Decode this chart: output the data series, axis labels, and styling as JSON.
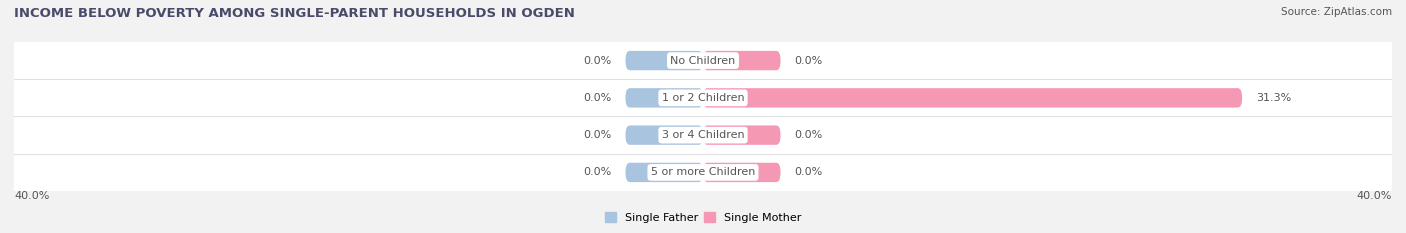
{
  "title": "INCOME BELOW POVERTY AMONG SINGLE-PARENT HOUSEHOLDS IN OGDEN",
  "source": "Source: ZipAtlas.com",
  "categories": [
    "No Children",
    "1 or 2 Children",
    "3 or 4 Children",
    "5 or more Children"
  ],
  "single_father": [
    0.0,
    0.0,
    0.0,
    0.0
  ],
  "single_mother": [
    0.0,
    31.3,
    0.0,
    0.0
  ],
  "father_color": "#a8c4df",
  "mother_color": "#f598b4",
  "stub_size": 4.5,
  "xlim": 40.0,
  "bar_height": 0.52,
  "axis_label_left": "40.0%",
  "axis_label_right": "40.0%",
  "legend_father": "Single Father",
  "legend_mother": "Single Mother",
  "title_fontsize": 9.5,
  "source_fontsize": 7.5,
  "label_fontsize": 8.0,
  "cat_fontsize": 8.0,
  "background_color": "#f2f2f2",
  "row_color": "#ffffff",
  "sep_color": "#e0e0e0",
  "title_color": "#4a4a6a",
  "text_color": "#555555"
}
